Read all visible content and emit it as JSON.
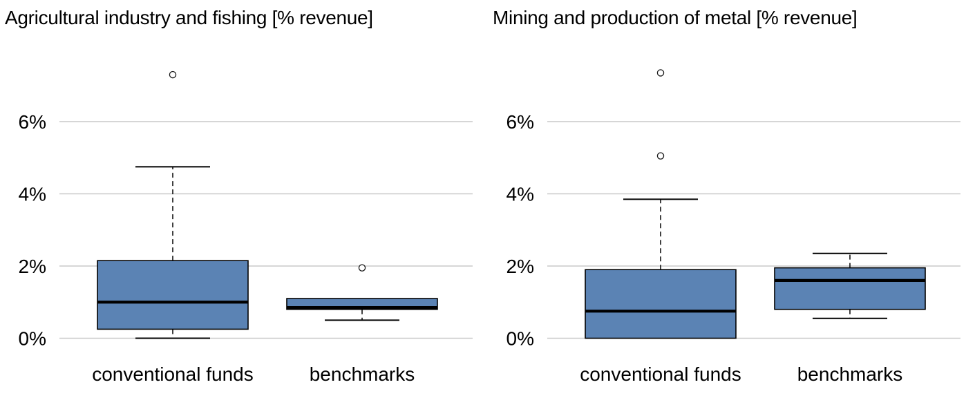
{
  "figure": {
    "background": "#ffffff",
    "box_fill": "#5b83b4",
    "box_stroke": "#000000",
    "median_color": "#000000",
    "whisker_color": "#000000",
    "outlier_stroke": "#1a1a1a",
    "outlier_fill": "#ffffff",
    "grid_color": "#c9c9c9",
    "text_color": "#000000"
  },
  "chart_data": [
    {
      "type": "boxplot",
      "title": "Agricultural industry and fishing [% revenue]",
      "xlabel": "",
      "ylabel": "% revenue",
      "categories": [
        "conventional funds",
        "benchmarks"
      ],
      "y_axis": {
        "tick_values": [
          0,
          2,
          4,
          6
        ],
        "tick_labels": [
          "0%",
          "2%",
          "4%",
          "6%"
        ],
        "ylim": [
          -0.3,
          7.8
        ],
        "grid": true
      },
      "series": [
        {
          "category": "conventional funds",
          "whisker_low": 0.0,
          "q1": 0.25,
          "median": 1.0,
          "q3": 2.15,
          "whisker_high": 4.75,
          "outliers": [
            7.3
          ]
        },
        {
          "category": "benchmarks",
          "whisker_low": 0.5,
          "q1": 0.8,
          "median": 0.85,
          "q3": 1.1,
          "whisker_high": 1.1,
          "outliers": [
            1.95
          ]
        }
      ]
    },
    {
      "type": "boxplot",
      "title": "Mining and production of metal [% revenue]",
      "xlabel": "",
      "ylabel": "% revenue",
      "categories": [
        "conventional funds",
        "benchmarks"
      ],
      "y_axis": {
        "tick_values": [
          0,
          2,
          4,
          6
        ],
        "tick_labels": [
          "0%",
          "2%",
          "4%",
          "6%"
        ],
        "ylim": [
          -0.3,
          7.8
        ],
        "grid": true
      },
      "series": [
        {
          "category": "conventional funds",
          "whisker_low": 0.0,
          "q1": 0.0,
          "median": 0.75,
          "q3": 1.9,
          "whisker_high": 3.85,
          "outliers": [
            5.05,
            7.35
          ]
        },
        {
          "category": "benchmarks",
          "whisker_low": 0.55,
          "q1": 0.8,
          "median": 1.6,
          "q3": 1.95,
          "whisker_high": 2.35,
          "outliers": []
        }
      ]
    }
  ]
}
